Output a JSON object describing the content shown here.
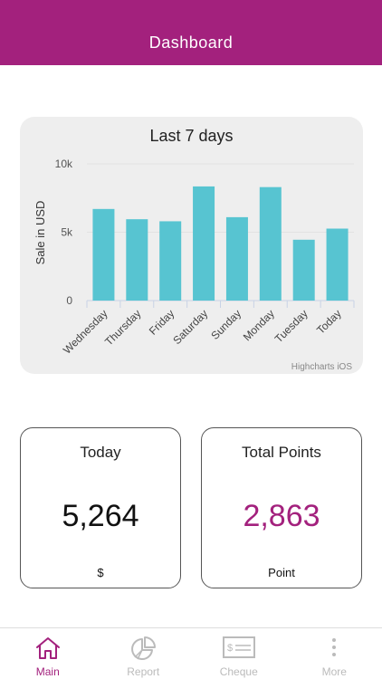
{
  "header": {
    "title": "Dashboard"
  },
  "chart_data": {
    "type": "bar",
    "title": "Last 7 days",
    "ylabel": "Sale in USD",
    "xlabel": "",
    "categories": [
      "Wednesday",
      "Thursday",
      "Friday",
      "Saturday",
      "Sunday",
      "Monday",
      "Tuesday",
      "Today"
    ],
    "values": [
      6700,
      5950,
      5800,
      8350,
      6100,
      8300,
      4450,
      5264
    ],
    "ylim": [
      0,
      10000
    ],
    "yticks": [
      "0",
      "5k",
      "10k"
    ],
    "bar_color": "#57c4d1",
    "credits": "Highcharts iOS",
    "grid": true,
    "legend": false
  },
  "stats": {
    "today": {
      "label": "Today",
      "value": "5,264",
      "unit": "$"
    },
    "points": {
      "label": "Total Points",
      "value": "2,863",
      "unit": "Point"
    }
  },
  "tabs": [
    {
      "label": "Main",
      "icon": "home-icon",
      "active": true
    },
    {
      "label": "Report",
      "icon": "pie-chart-icon",
      "active": false
    },
    {
      "label": "Cheque",
      "icon": "cheque-icon",
      "active": false
    },
    {
      "label": "More",
      "icon": "more-icon",
      "active": false
    }
  ],
  "colors": {
    "accent": "#a3217d",
    "inactive": "#bbbbbb"
  }
}
